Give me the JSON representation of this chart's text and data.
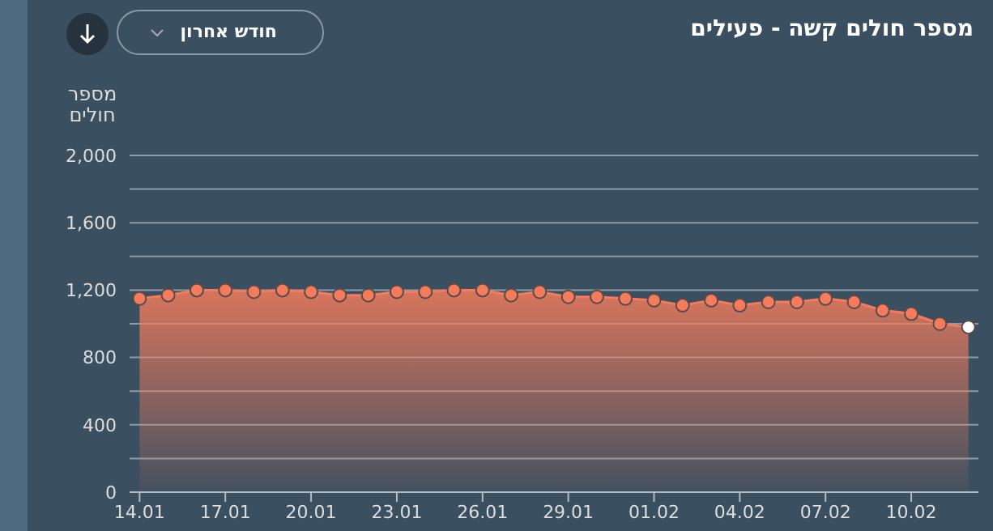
{
  "chart_data": {
    "type": "area",
    "title": "מספר חולים קשה - פעילים",
    "ylabel": "מספר חולים",
    "annotations": [
      "חודש אחרון"
    ],
    "categories": [
      "14.01",
      null,
      null,
      "17.01",
      null,
      null,
      "20.01",
      null,
      null,
      "23.01",
      null,
      null,
      "26.01",
      null,
      null,
      "29.01",
      null,
      null,
      "01.02",
      null,
      null,
      "04.02",
      null,
      null,
      "07.02",
      null,
      null,
      "10.02",
      null,
      null
    ],
    "series": [
      {
        "color": "#f47c5c",
        "values": [
          1150,
          1170,
          1200,
          1200,
          1190,
          1200,
          1190,
          1170,
          1170,
          1190,
          1190,
          1200,
          1200,
          1170,
          1190,
          1160,
          1160,
          1150,
          1140,
          1110,
          1140,
          1110,
          1130,
          1130,
          1150,
          1130,
          1080,
          1060,
          1000,
          980
        ],
        "colors": [
          "#f47c5c",
          "#f47c5c",
          "#f47c5c",
          "#f47c5c",
          "#f47c5c",
          "#f47c5c",
          "#f47c5c",
          "#f47c5c",
          "#f47c5c",
          "#f47c5c",
          "#f47c5c",
          "#f47c5c",
          "#f47c5c",
          "#f47c5c",
          "#f47c5c",
          "#f47c5c",
          "#f47c5c",
          "#f47c5c",
          "#f47c5c",
          "#f47c5c",
          "#f47c5c",
          "#f47c5c",
          "#f47c5c",
          "#f47c5c",
          "#f47c5c",
          "#f47c5c",
          "#f47c5c",
          "#f47c5c",
          "#f47c5c",
          "#ffffff"
        ]
      }
    ],
    "ylim": [
      0,
      2000
    ],
    "yticks": [
      0,
      {
        "value": 200,
        "label": null
      },
      400,
      {
        "value": 600,
        "label": null
      },
      800,
      {
        "value": 1000,
        "label": null
      },
      "1,200",
      {
        "value": 1400,
        "label": null
      },
      "1,600",
      {
        "value": 1800,
        "label": null
      },
      "2,000"
    ],
    "grid": "y",
    "marker": "circle"
  }
}
